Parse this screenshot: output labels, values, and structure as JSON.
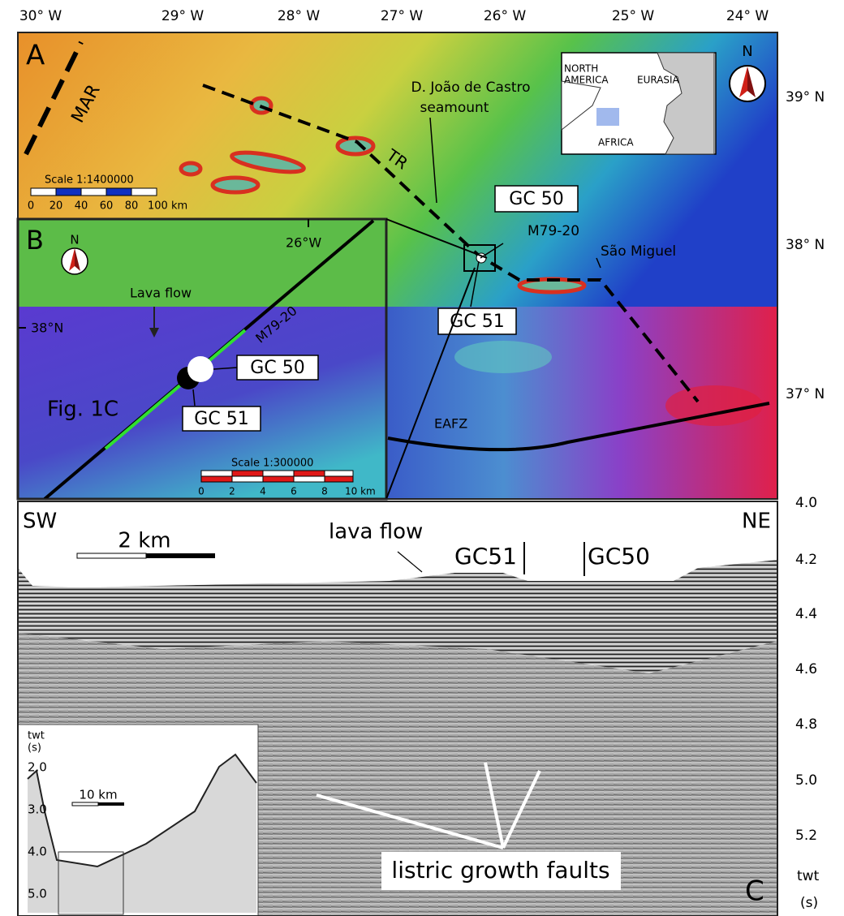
{
  "axes": {
    "top": [
      "30° W",
      "29° W",
      "28° W",
      "27° W",
      "26° W",
      "25° W",
      "24° W"
    ],
    "right_lat": [
      "39° N",
      "38° N",
      "37° N"
    ],
    "right_twt": [
      "4.0",
      "4.2",
      "4.4",
      "4.6",
      "4.8",
      "5.0",
      "5.2"
    ],
    "twt_unit": [
      "twt",
      "(s)"
    ]
  },
  "panel_a": {
    "label": "A",
    "ridge": "MAR",
    "rift": "TR",
    "seamount": [
      "D. João de Castro",
      "seamount"
    ],
    "north": "N",
    "inset": {
      "north_america": [
        "NORTH",
        "AMERICA"
      ],
      "eurasia": "EURASIA",
      "africa": "AFRICA"
    },
    "scale": {
      "title": "Scale 1:1400000",
      "ticks": [
        "0",
        "20",
        "40",
        "60",
        "80",
        "100 km"
      ]
    },
    "core_gc50": "GC 50",
    "line": "M79-20",
    "island": "São Miguel",
    "core_gc51": "GC 51",
    "fault_zone": "EAFZ"
  },
  "panel_b": {
    "label": "B",
    "north": "N",
    "longitude": "26°W",
    "latitude": "38°N",
    "lava_flow": "Lava flow",
    "line": "M79-20",
    "core_gc50": "GC 50",
    "core_gc51": "GC 51",
    "figure_ref": "Fig. 1C",
    "scale": {
      "title": "Scale 1:300000",
      "ticks": [
        "0",
        "2",
        "4",
        "6",
        "8",
        "10 km"
      ]
    }
  },
  "panel_c": {
    "label": "C",
    "sw": "SW",
    "ne": "NE",
    "scale": "2 km",
    "lava_flow": "lava flow",
    "core_gc51": "GC51",
    "core_gc50": "GC50",
    "faults": "listric growth faults",
    "inset": {
      "axis_title": [
        "twt",
        "(s)"
      ],
      "ticks": [
        "2.0",
        "3.0",
        "4.0",
        "5.0"
      ],
      "scale": "10 km"
    }
  }
}
